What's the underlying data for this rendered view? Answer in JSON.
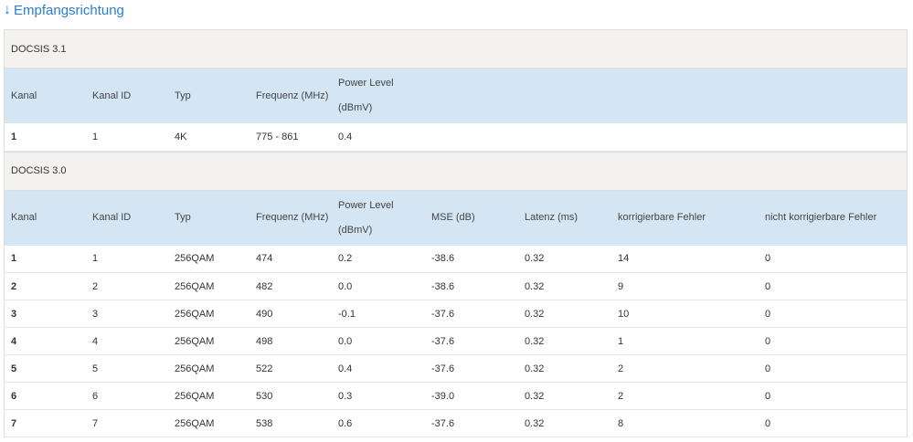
{
  "heading": {
    "icon": "arrow-down-icon",
    "arrow": "↓",
    "title": "Empfangsrichtung"
  },
  "docsis31": {
    "title": "DOCSIS 3.1",
    "columns": [
      "Kanal",
      "Kanal ID",
      "Typ",
      "Frequenz (MHz)",
      "Power Level",
      "(dBmV)"
    ],
    "rows": [
      [
        "1",
        "1",
        "4K",
        "775 - 861",
        "0.4"
      ]
    ]
  },
  "docsis30": {
    "title": "DOCSIS 3.0",
    "columns": [
      "Kanal",
      "Kanal ID",
      "Typ",
      "Frequenz (MHz)",
      "Power Level",
      "(dBmV)",
      "MSE (dB)",
      "Latenz (ms)",
      "korrigierbare Fehler",
      "nicht korrigierbare Fehler"
    ],
    "rows": [
      [
        "1",
        "1",
        "256QAM",
        "474",
        "0.2",
        "-38.6",
        "0.32",
        "14",
        "0"
      ],
      [
        "2",
        "2",
        "256QAM",
        "482",
        "0.0",
        "-38.6",
        "0.32",
        "9",
        "0"
      ],
      [
        "3",
        "3",
        "256QAM",
        "490",
        "-0.1",
        "-37.6",
        "0.32",
        "10",
        "0"
      ],
      [
        "4",
        "4",
        "256QAM",
        "498",
        "0.0",
        "-37.6",
        "0.32",
        "1",
        "0"
      ],
      [
        "5",
        "5",
        "256QAM",
        "522",
        "0.4",
        "-37.6",
        "0.32",
        "2",
        "0"
      ],
      [
        "6",
        "6",
        "256QAM",
        "530",
        "0.3",
        "-39.0",
        "0.32",
        "2",
        "0"
      ],
      [
        "7",
        "7",
        "256QAM",
        "538",
        "0.6",
        "-37.6",
        "0.32",
        "8",
        "0"
      ]
    ]
  }
}
